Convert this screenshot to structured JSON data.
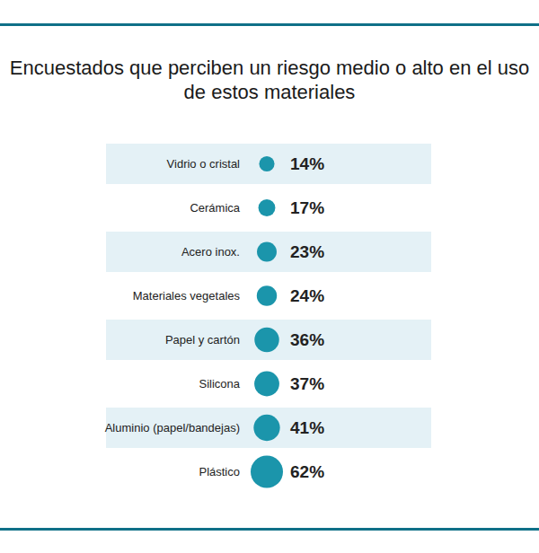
{
  "chart_data": {
    "type": "bubble",
    "title": "Encuestados que perciben un riesgo medio o alto en el uso de estos materiales",
    "categories": [
      "Vidrio o cristal",
      "Cerámica",
      "Acero inox.",
      "Materiales vegetales",
      "Papel y cartón",
      "Silicona",
      "Aluminio (papel/bandejas)",
      "Plástico"
    ],
    "values": [
      14,
      17,
      23,
      24,
      36,
      37,
      41,
      62
    ],
    "value_labels": [
      "14%",
      "17%",
      "23%",
      "24%",
      "36%",
      "37%",
      "41%",
      "62%"
    ],
    "color": "#1b95ab",
    "orientation": "horizontal",
    "data_labels": true,
    "tick_labels": "y"
  }
}
